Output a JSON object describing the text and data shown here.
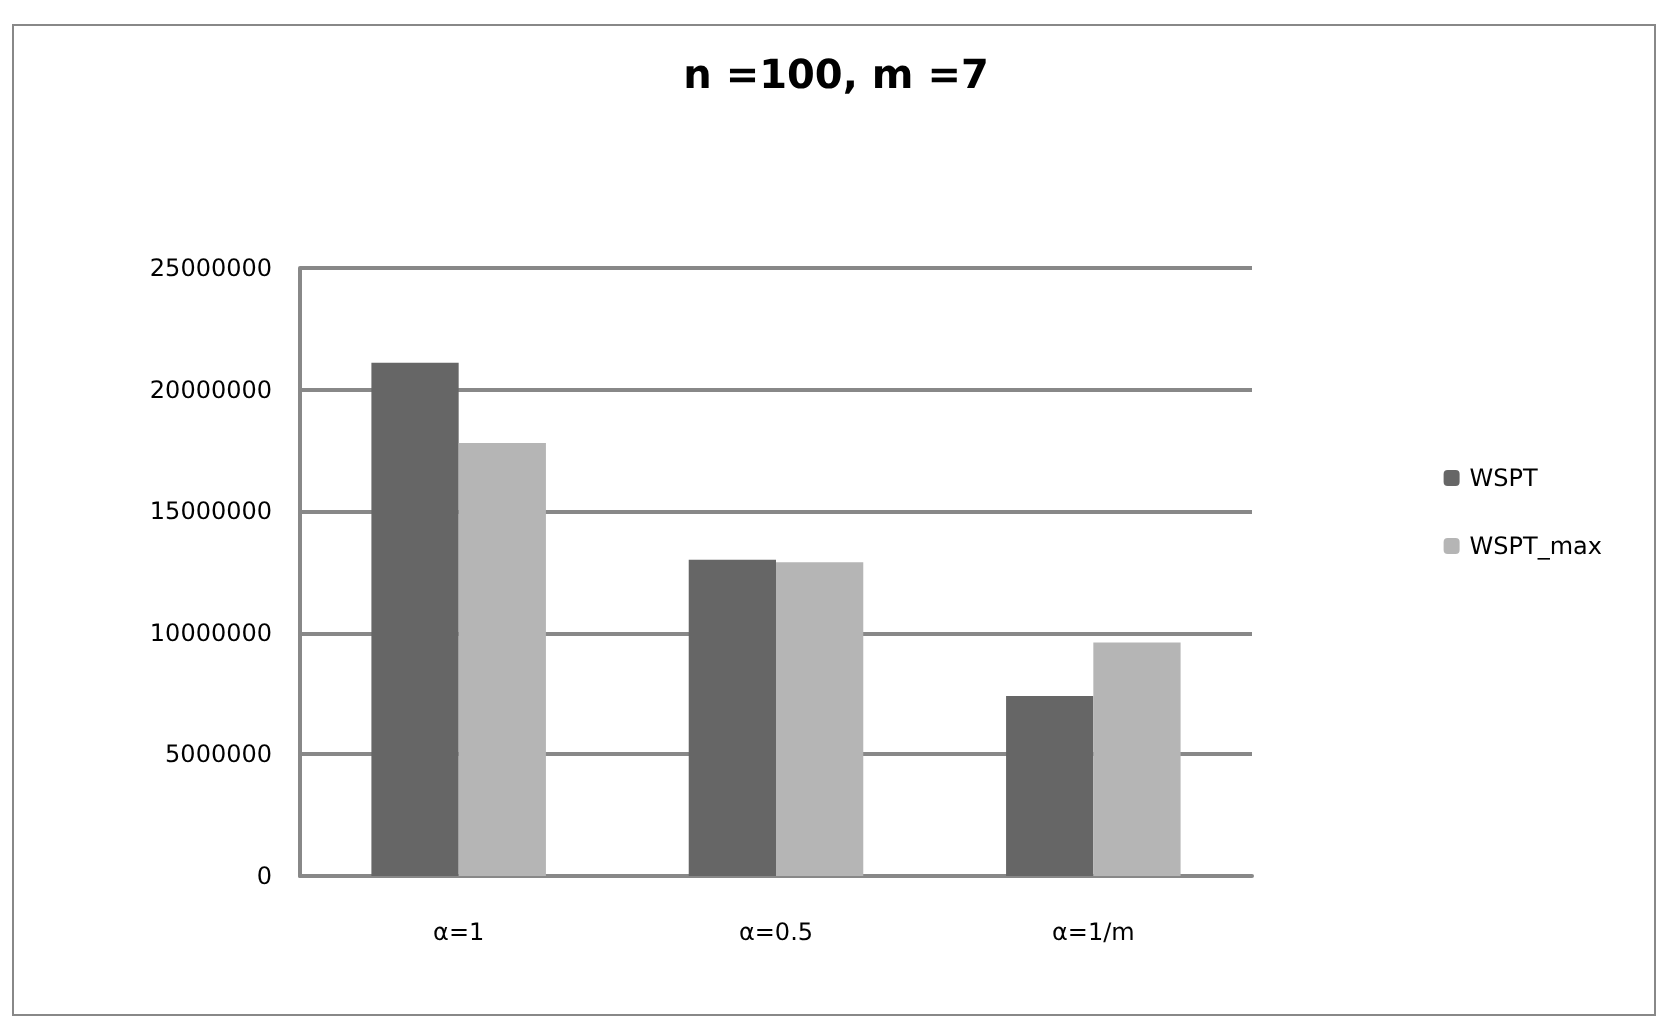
{
  "chart_data": {
    "type": "bar",
    "title": "n =100, m =7",
    "categories": [
      "α=1",
      "α=0.5",
      "α=1/m"
    ],
    "series": [
      {
        "name": "WSPT",
        "color": "#666666",
        "values": [
          21100000,
          13000000,
          7400000
        ]
      },
      {
        "name": "WSPT_max",
        "color": "#b5b5b5",
        "values": [
          17800000,
          12900000,
          9600000
        ]
      }
    ],
    "ylim": [
      0,
      25000000
    ],
    "yticks": [
      0,
      5000000,
      10000000,
      15000000,
      20000000,
      25000000
    ],
    "grid": "y",
    "legend": "right"
  }
}
